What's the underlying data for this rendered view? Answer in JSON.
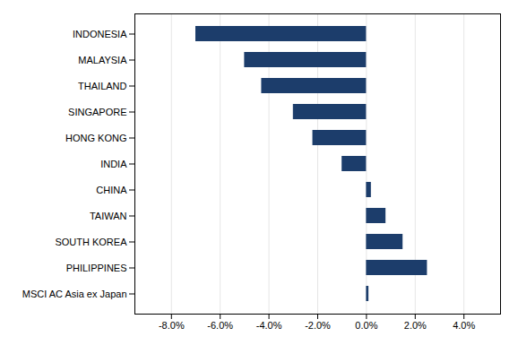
{
  "chart_data": {
    "type": "bar",
    "orientation": "horizontal",
    "categories": [
      "INDONESIA",
      "MALAYSIA",
      "THAILAND",
      "SINGAPORE",
      "HONG KONG",
      "INDIA",
      "CHINA",
      "TAIWAN",
      "SOUTH KOREA",
      "PHILIPPINES",
      "MSCI AC Asia ex Japan"
    ],
    "values": [
      -7.0,
      -5.0,
      -4.3,
      -3.0,
      -2.2,
      -1.0,
      0.2,
      0.8,
      1.5,
      2.5,
      0.1
    ],
    "color": "#1c3d6b",
    "xlim": [
      -9.5,
      5.5
    ],
    "xticks": [
      {
        "value": -8.0,
        "label": "-8.0%"
      },
      {
        "value": -6.0,
        "label": "-6.0%"
      },
      {
        "value": -4.0,
        "label": "-4.0%"
      },
      {
        "value": -2.0,
        "label": "-2.0%"
      },
      {
        "value": 0.0,
        "label": "0.0%"
      },
      {
        "value": 2.0,
        "label": "2.0%"
      },
      {
        "value": 4.0,
        "label": "4.0%"
      }
    ],
    "grid": true
  }
}
